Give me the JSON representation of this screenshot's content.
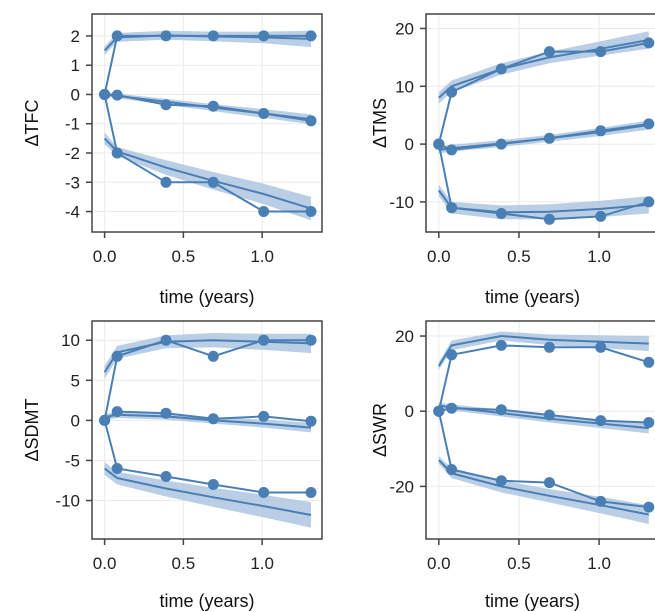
{
  "chart_data": [
    {
      "type": "line",
      "ylabel": "ΔTFC",
      "xlabel": "time (years)",
      "xlim": [
        -0.08,
        1.38
      ],
      "ylim": [
        -4.7,
        2.75
      ],
      "xticks": [
        0.0,
        0.5,
        1.0
      ],
      "xtick_labels": [
        "0.0",
        "0.5",
        "1.0"
      ],
      "yticks": [
        2,
        1,
        0,
        -1,
        -2,
        -3,
        -4
      ],
      "ytick_labels": [
        "2",
        "1",
        "0",
        "-1",
        "-2",
        "-3",
        "-4"
      ],
      "grid": true,
      "observed": [
        {
          "x": [
            0,
            0.08,
            0.39,
            0.69,
            1.01,
            1.31
          ],
          "y": [
            0,
            2,
            2,
            2,
            2,
            2
          ]
        },
        {
          "x": [
            0,
            0.08,
            0.39,
            0.69,
            1.01,
            1.31
          ],
          "y": [
            0,
            -0.02,
            -0.35,
            -0.4,
            -0.65,
            -0.9
          ]
        },
        {
          "x": [
            0,
            0.08,
            0.39,
            0.69,
            1.01,
            1.31
          ],
          "y": [
            0,
            -2,
            -3,
            -3,
            -4,
            -4
          ]
        }
      ],
      "fitted": [
        {
          "x": [
            0,
            0.08,
            0.39,
            0.69,
            1.01,
            1.31
          ],
          "y": [
            1.5,
            1.95,
            2.02,
            1.98,
            1.95,
            1.9
          ],
          "band_lo": [
            1.35,
            1.8,
            1.87,
            1.82,
            1.75,
            1.62
          ],
          "band_hi": [
            1.65,
            2.1,
            2.18,
            2.15,
            2.15,
            2.18
          ]
        },
        {
          "x": [
            0,
            0.08,
            0.39,
            0.69,
            1.01,
            1.31
          ],
          "y": [
            0,
            -0.05,
            -0.25,
            -0.45,
            -0.65,
            -0.85
          ],
          "band_lo": [
            -0.08,
            -0.13,
            -0.35,
            -0.57,
            -0.8,
            -1.02
          ],
          "band_hi": [
            0.08,
            0.03,
            -0.15,
            -0.33,
            -0.5,
            -0.68
          ]
        },
        {
          "x": [
            0,
            0.08,
            0.39,
            0.69,
            1.01,
            1.31
          ],
          "y": [
            -1.5,
            -1.95,
            -2.5,
            -2.95,
            -3.4,
            -3.9
          ],
          "band_lo": [
            -1.7,
            -2.1,
            -2.75,
            -3.25,
            -3.75,
            -4.3
          ],
          "band_hi": [
            -1.3,
            -1.8,
            -2.25,
            -2.65,
            -3.05,
            -3.5
          ]
        }
      ]
    },
    {
      "type": "line",
      "ylabel": "ΔTMS",
      "xlabel": "time (years)",
      "xlim": [
        -0.08,
        1.38
      ],
      "ylim": [
        -15.2,
        22.5
      ],
      "xticks": [
        0.0,
        0.5,
        1.0
      ],
      "xtick_labels": [
        "0.0",
        "0.5",
        "1.0"
      ],
      "yticks": [
        20,
        10,
        0,
        -10
      ],
      "ytick_labels": [
        "20",
        "10",
        "0",
        "-10"
      ],
      "grid": true,
      "observed": [
        {
          "x": [
            0,
            0.08,
            0.39,
            0.69,
            1.01,
            1.31
          ],
          "y": [
            0,
            9,
            13,
            16,
            16,
            17.5
          ]
        },
        {
          "x": [
            0,
            0.08,
            0.39,
            0.69,
            1.01,
            1.31
          ],
          "y": [
            0,
            -1,
            0,
            1,
            2.3,
            3.5
          ]
        },
        {
          "x": [
            0,
            0.08,
            0.39,
            0.69,
            1.01,
            1.31
          ],
          "y": [
            0,
            -11,
            -12,
            -13,
            -12.5,
            -10
          ]
        }
      ],
      "fitted": [
        {
          "x": [
            0,
            0.08,
            0.39,
            0.69,
            1.01,
            1.31
          ],
          "y": [
            8,
            10,
            13,
            15,
            16.5,
            18
          ],
          "band_lo": [
            7,
            9,
            12,
            14,
            15.3,
            16.5
          ],
          "band_hi": [
            9,
            11,
            14,
            16,
            17.8,
            19.5
          ]
        },
        {
          "x": [
            0,
            0.08,
            0.39,
            0.69,
            1.01,
            1.31
          ],
          "y": [
            -1,
            -0.7,
            0.1,
            1,
            2.1,
            3.3
          ],
          "band_lo": [
            -1.6,
            -1.3,
            -0.5,
            0.4,
            1.4,
            2.5
          ],
          "band_hi": [
            -0.4,
            -0.1,
            0.7,
            1.6,
            2.8,
            4.1
          ]
        },
        {
          "x": [
            0,
            0.08,
            0.39,
            0.69,
            1.01,
            1.31
          ],
          "y": [
            -8,
            -11,
            -11.8,
            -11.7,
            -11.2,
            -10.5
          ],
          "band_lo": [
            -9,
            -12,
            -13,
            -13,
            -12.6,
            -12
          ],
          "band_hi": [
            -7,
            -10,
            -10.6,
            -10.4,
            -9.8,
            -9
          ]
        }
      ]
    },
    {
      "type": "line",
      "ylabel": "ΔSDMT",
      "xlabel": "time (years)",
      "xlim": [
        -0.08,
        1.38
      ],
      "ylim": [
        -14.8,
        12.4
      ],
      "xticks": [
        0.0,
        0.5,
        1.0
      ],
      "xtick_labels": [
        "0.0",
        "0.5",
        "1.0"
      ],
      "yticks": [
        10,
        5,
        0,
        -5,
        -10
      ],
      "ytick_labels": [
        "10",
        "5",
        "0",
        "-5",
        "-10"
      ],
      "grid": true,
      "observed": [
        {
          "x": [
            0,
            0.08,
            0.39,
            0.69,
            1.01,
            1.31
          ],
          "y": [
            0,
            8,
            10,
            8,
            10,
            10
          ]
        },
        {
          "x": [
            0,
            0.08,
            0.39,
            0.69,
            1.01,
            1.31
          ],
          "y": [
            0,
            1.1,
            0.9,
            0.2,
            0.5,
            -0.1
          ]
        },
        {
          "x": [
            0,
            0.08,
            0.39,
            0.69,
            1.01,
            1.31
          ],
          "y": [
            0,
            -6,
            -7,
            -8,
            -9,
            -9
          ]
        }
      ],
      "fitted": [
        {
          "x": [
            0,
            0.08,
            0.39,
            0.69,
            1.01,
            1.31
          ],
          "y": [
            6,
            8.5,
            9.8,
            10,
            9.8,
            9.6
          ],
          "band_lo": [
            5.2,
            7.7,
            9,
            9.1,
            8.8,
            8.4
          ],
          "band_hi": [
            6.8,
            9.3,
            10.6,
            10.9,
            10.8,
            10.8
          ]
        },
        {
          "x": [
            0,
            0.08,
            0.39,
            0.69,
            1.01,
            1.31
          ],
          "y": [
            0.4,
            0.7,
            0.5,
            0,
            -0.4,
            -0.9
          ],
          "band_lo": [
            0,
            0.3,
            0.1,
            -0.4,
            -0.9,
            -1.5
          ],
          "band_hi": [
            0.8,
            1.1,
            0.9,
            0.4,
            0.1,
            -0.3
          ]
        },
        {
          "x": [
            0,
            0.08,
            0.39,
            0.69,
            1.01,
            1.31
          ],
          "y": [
            -6,
            -7.2,
            -8.5,
            -9.6,
            -10.7,
            -11.8
          ],
          "band_lo": [
            -6.8,
            -8,
            -9.5,
            -10.8,
            -12.1,
            -13.4
          ],
          "band_hi": [
            -5.2,
            -6.4,
            -7.5,
            -8.4,
            -9.3,
            -10.2
          ]
        }
      ]
    },
    {
      "type": "line",
      "ylabel": "ΔSWR",
      "xlabel": "time (years)",
      "xlim": [
        -0.08,
        1.38
      ],
      "ylim": [
        -34,
        24
      ],
      "xticks": [
        0.0,
        0.5,
        1.0
      ],
      "xtick_labels": [
        "0.0",
        "0.5",
        "1.0"
      ],
      "yticks": [
        20,
        0,
        -20
      ],
      "ytick_labels": [
        "20",
        "0",
        "-20"
      ],
      "grid": true,
      "observed": [
        {
          "x": [
            0,
            0.08,
            0.39,
            0.69,
            1.01,
            1.31
          ],
          "y": [
            0,
            15,
            17.5,
            17,
            17,
            13
          ]
        },
        {
          "x": [
            0,
            0.08,
            0.39,
            0.69,
            1.01,
            1.31
          ],
          "y": [
            0,
            0.8,
            0.4,
            -1,
            -2.5,
            -3
          ]
        },
        {
          "x": [
            0,
            0.08,
            0.39,
            0.69,
            1.01,
            1.31
          ],
          "y": [
            0,
            -15.5,
            -18.5,
            -19,
            -24,
            -25.5
          ]
        }
      ],
      "fitted": [
        {
          "x": [
            0,
            0.08,
            0.39,
            0.69,
            1.01,
            1.31
          ],
          "y": [
            12,
            17.5,
            20,
            19,
            18.5,
            18
          ],
          "band_lo": [
            11,
            16.2,
            18.8,
            17.6,
            16.8,
            16
          ],
          "band_hi": [
            13,
            18.8,
            21.2,
            20.4,
            20.2,
            20
          ]
        },
        {
          "x": [
            0,
            0.08,
            0.39,
            0.69,
            1.01,
            1.31
          ],
          "y": [
            1.5,
            1,
            -0.5,
            -2,
            -3.3,
            -4.5
          ],
          "band_lo": [
            0.7,
            0.2,
            -1.4,
            -3,
            -4.5,
            -5.9
          ],
          "band_hi": [
            2.3,
            1.8,
            0.4,
            -1,
            -2.1,
            -3.1
          ]
        },
        {
          "x": [
            0,
            0.08,
            0.39,
            0.69,
            1.01,
            1.31
          ],
          "y": [
            -13,
            -16.5,
            -20,
            -22.5,
            -25,
            -27.5
          ],
          "band_lo": [
            -14,
            -17.8,
            -21.6,
            -24.3,
            -27.2,
            -30
          ],
          "band_hi": [
            -12,
            -15.2,
            -18.4,
            -20.7,
            -22.8,
            -25
          ]
        }
      ]
    }
  ],
  "style": {
    "line_color": "#4a7fb5",
    "band_color": "#a9c3df",
    "grid_color": "#ebebeb",
    "frame_color": "#444444"
  }
}
